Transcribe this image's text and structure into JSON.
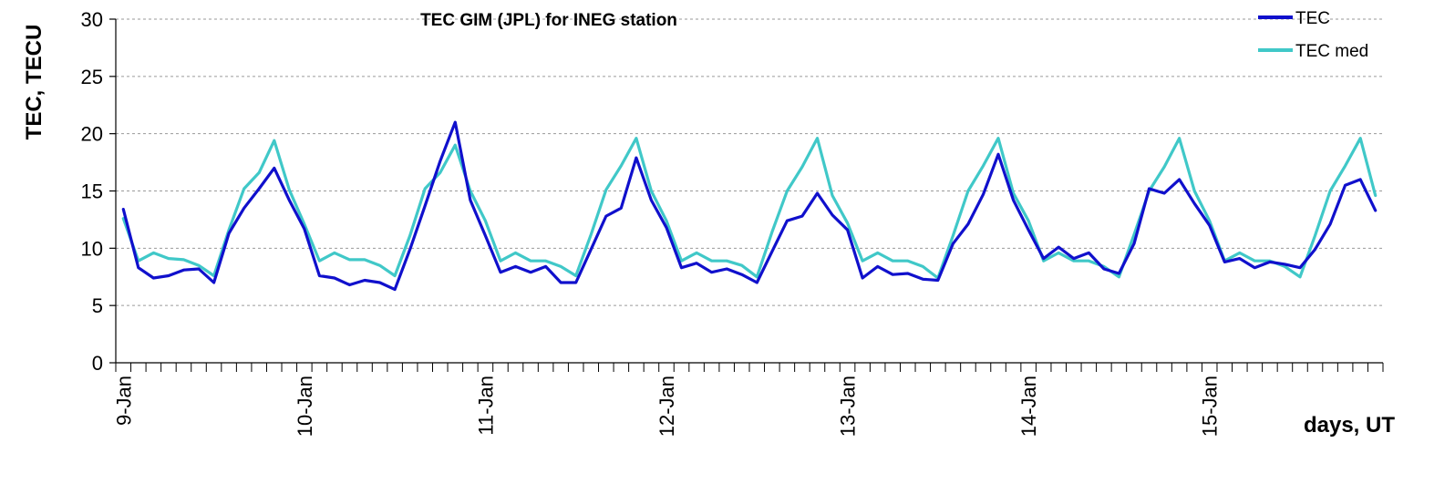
{
  "chart_data": {
    "type": "line",
    "title": "TEC GIM (JPL) for INEG station",
    "xlabel": "days, UT",
    "ylabel": "TEC, TECU",
    "ylim": [
      0,
      30
    ],
    "yticks": [
      0,
      5,
      10,
      15,
      20,
      25,
      30
    ],
    "grid": "horizontal dotted",
    "legend_position": "top-right",
    "x_tick_labels": [
      "9-Jan",
      "10-Jan",
      "11-Jan",
      "12-Jan",
      "13-Jan",
      "14-Jan",
      "15-Jan"
    ],
    "sample_interval_hours": 2,
    "series": [
      {
        "name": "TEC",
        "color": "#1010cc",
        "values": [
          13.4,
          8.3,
          7.4,
          7.6,
          8.1,
          8.2,
          7.0,
          11.3,
          13.5,
          15.2,
          17.0,
          14.2,
          11.7,
          7.6,
          7.4,
          6.8,
          7.2,
          7.0,
          6.4,
          9.9,
          13.7,
          17.6,
          21.0,
          14.2,
          11.1,
          7.9,
          8.4,
          7.9,
          8.4,
          7.0,
          7.0,
          9.9,
          12.8,
          13.5,
          17.9,
          14.2,
          11.8,
          8.3,
          8.7,
          7.9,
          8.2,
          7.7,
          7.0,
          9.7,
          12.4,
          12.8,
          14.8,
          12.9,
          11.6,
          7.4,
          8.4,
          7.7,
          7.8,
          7.3,
          7.2,
          10.4,
          12.1,
          14.7,
          18.2,
          14.2,
          11.6,
          9.1,
          10.1,
          9.1,
          9.6,
          8.2,
          7.8,
          10.4,
          15.2,
          14.8,
          16.0,
          13.9,
          12.0,
          8.8,
          9.1,
          8.3,
          8.8,
          8.6,
          8.3,
          9.9,
          12.1,
          15.5,
          16.0,
          13.3
        ],
        "style": "solid"
      },
      {
        "name": "TEC med",
        "color": "#40c8c8",
        "values": [
          12.6,
          8.9,
          9.6,
          9.1,
          9.0,
          8.5,
          7.6,
          11.6,
          15.2,
          16.6,
          19.4,
          15.1,
          12.1,
          8.9,
          9.6,
          9.0,
          9.0,
          8.5,
          7.6,
          11.1,
          15.2,
          16.6,
          19.0,
          15.0,
          12.4,
          8.9,
          9.6,
          8.9,
          8.9,
          8.4,
          7.6,
          11.2,
          15.1,
          17.2,
          19.6,
          15.0,
          12.4,
          8.9,
          9.6,
          8.9,
          8.9,
          8.5,
          7.5,
          11.4,
          15.0,
          17.1,
          19.6,
          14.6,
          12.2,
          8.9,
          9.6,
          8.9,
          8.9,
          8.4,
          7.4,
          11.1,
          15.0,
          17.2,
          19.6,
          14.8,
          12.4,
          8.9,
          9.6,
          8.9,
          8.9,
          8.4,
          7.5,
          11.2,
          15.0,
          17.1,
          19.6,
          15.0,
          12.4,
          8.9,
          9.6,
          8.9,
          8.9,
          8.4,
          7.5,
          11.1,
          15.0,
          17.2,
          19.6,
          14.6
        ],
        "style": "solid"
      }
    ]
  }
}
